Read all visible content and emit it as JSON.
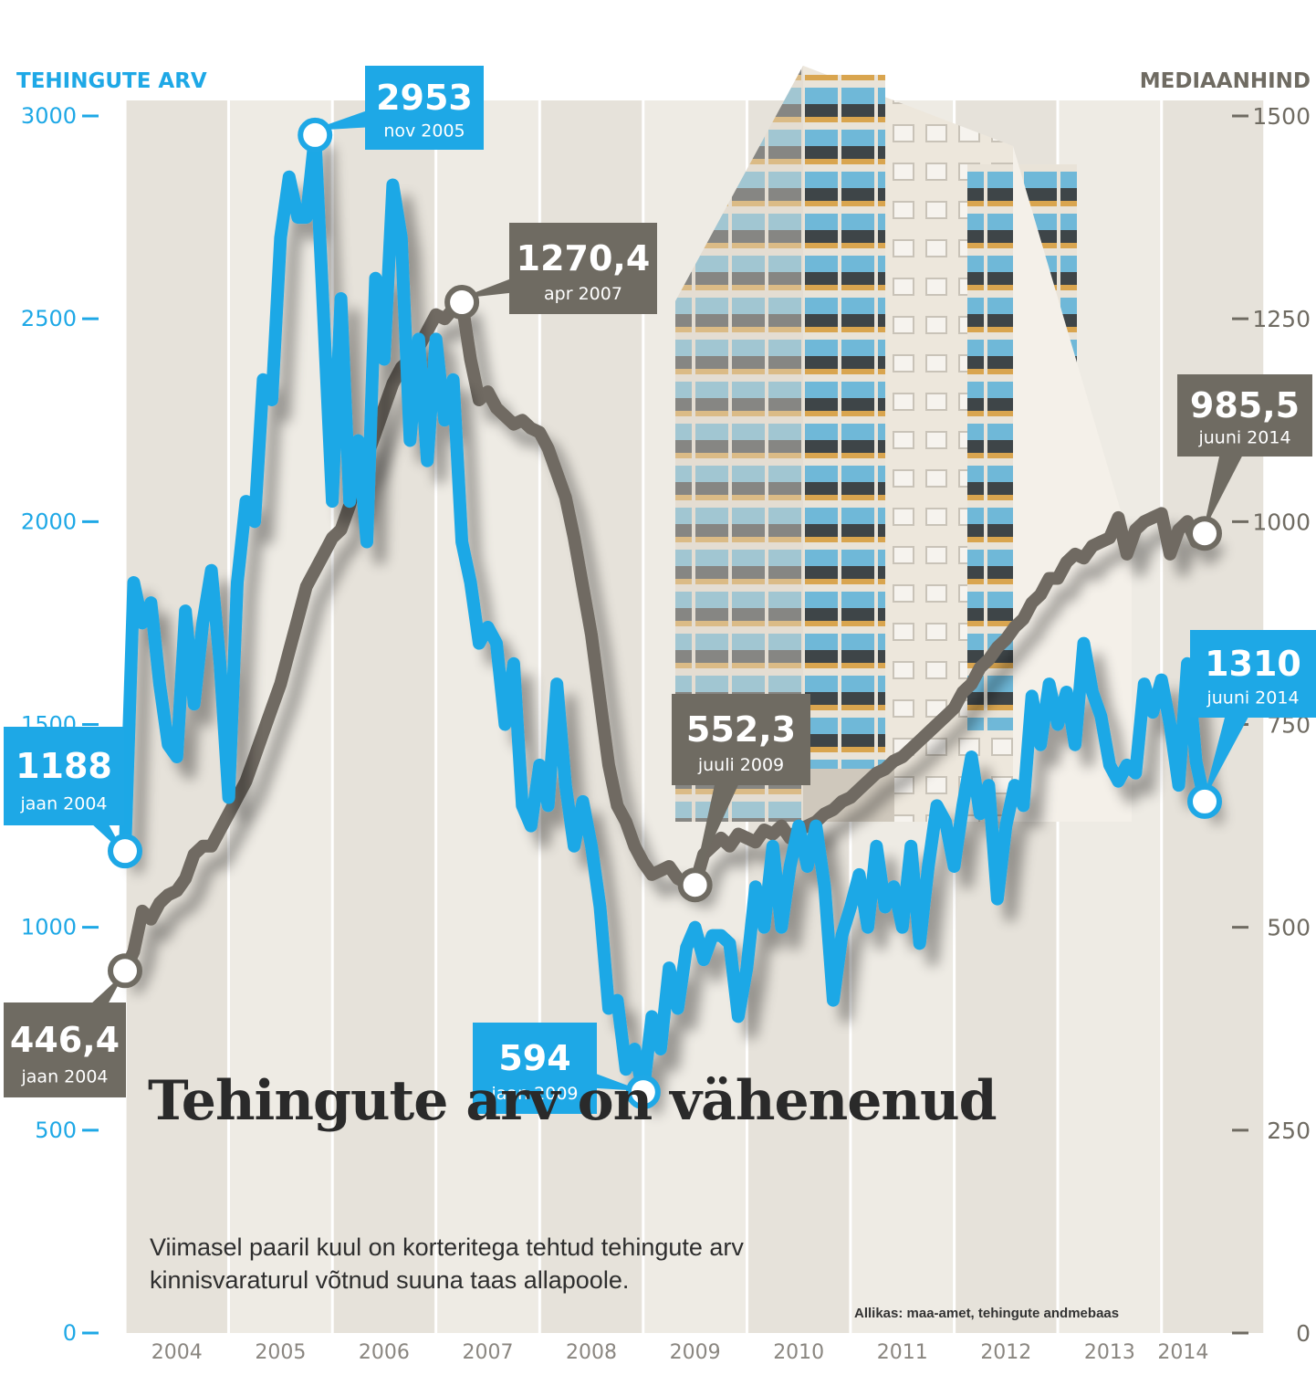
{
  "chart_data": {
    "type": "line",
    "title": "Tehingute arv on vähenenud",
    "subtitle": "Viimasel paaril kuul on korteritega tehtud tehingute arv kinnisvaraturul võtnud suuna taas allapoole.",
    "source": "Allikas: maa-amet, tehingute andmebaas",
    "left_axis": {
      "label": "TEHINGUTE ARV",
      "ticks": [
        "3000",
        "2500",
        "2000",
        "1500",
        "1000",
        "500",
        "0"
      ],
      "ylim": [
        0,
        3000
      ]
    },
    "right_axis": {
      "label": "MEDIAANHIND",
      "ticks": [
        "1500",
        "1250",
        "1000",
        "750",
        "500",
        "250",
        "0"
      ],
      "ylim": [
        0,
        1500
      ]
    },
    "x_labels": [
      "2004",
      "2005",
      "2006",
      "2007",
      "2008",
      "2009",
      "2010",
      "2011",
      "2012",
      "2013",
      "2014"
    ],
    "x_range": [
      "2004-01",
      "2014-06"
    ],
    "colors": {
      "tehingud": "#1ea8e6",
      "mediaanhind": "#6f6b62"
    },
    "series": [
      {
        "name": "TEHINGUTE ARV",
        "axis": "left",
        "color": "#1ea8e6",
        "points": [
          [
            "2004-01",
            1188
          ],
          [
            "2004-02",
            1850
          ],
          [
            "2004-03",
            1750
          ],
          [
            "2004-04",
            1800
          ],
          [
            "2004-05",
            1600
          ],
          [
            "2004-06",
            1450
          ],
          [
            "2004-07",
            1420
          ],
          [
            "2004-08",
            1780
          ],
          [
            "2004-09",
            1550
          ],
          [
            "2004-10",
            1750
          ],
          [
            "2004-11",
            1880
          ],
          [
            "2004-12",
            1650
          ],
          [
            "2005-01",
            1320
          ],
          [
            "2005-02",
            1850
          ],
          [
            "2005-03",
            2050
          ],
          [
            "2005-04",
            2000
          ],
          [
            "2005-05",
            2350
          ],
          [
            "2005-06",
            2300
          ],
          [
            "2005-07",
            2700
          ],
          [
            "2005-08",
            2850
          ],
          [
            "2005-09",
            2750
          ],
          [
            "2005-10",
            2750
          ],
          [
            "2005-11",
            2953
          ],
          [
            "2005-12",
            2500
          ],
          [
            "2006-01",
            2050
          ],
          [
            "2006-02",
            2550
          ],
          [
            "2006-03",
            2050
          ],
          [
            "2006-04",
            2200
          ],
          [
            "2006-05",
            1950
          ],
          [
            "2006-06",
            2600
          ],
          [
            "2006-07",
            2400
          ],
          [
            "2006-08",
            2830
          ],
          [
            "2006-09",
            2700
          ],
          [
            "2006-10",
            2200
          ],
          [
            "2006-11",
            2450
          ],
          [
            "2006-12",
            2150
          ],
          [
            "2007-01",
            2450
          ],
          [
            "2007-02",
            2250
          ],
          [
            "2007-03",
            2350
          ],
          [
            "2007-04",
            1950
          ],
          [
            "2007-05",
            1850
          ],
          [
            "2007-06",
            1700
          ],
          [
            "2007-07",
            1740
          ],
          [
            "2007-08",
            1700
          ],
          [
            "2007-09",
            1500
          ],
          [
            "2007-10",
            1650
          ],
          [
            "2007-11",
            1300
          ],
          [
            "2007-12",
            1250
          ],
          [
            "2008-01",
            1400
          ],
          [
            "2008-02",
            1300
          ],
          [
            "2008-03",
            1600
          ],
          [
            "2008-04",
            1350
          ],
          [
            "2008-05",
            1200
          ],
          [
            "2008-06",
            1310
          ],
          [
            "2008-07",
            1200
          ],
          [
            "2008-08",
            1050
          ],
          [
            "2008-09",
            800
          ],
          [
            "2008-10",
            820
          ],
          [
            "2008-11",
            650
          ],
          [
            "2008-12",
            700
          ],
          [
            "2009-01",
            594
          ],
          [
            "2009-02",
            780
          ],
          [
            "2009-03",
            700
          ],
          [
            "2009-04",
            900
          ],
          [
            "2009-05",
            800
          ],
          [
            "2009-06",
            950
          ],
          [
            "2009-07",
            1000
          ],
          [
            "2009-08",
            920
          ],
          [
            "2009-09",
            980
          ],
          [
            "2009-10",
            980
          ],
          [
            "2009-11",
            960
          ],
          [
            "2009-12",
            780
          ],
          [
            "2010-01",
            900
          ],
          [
            "2010-02",
            1100
          ],
          [
            "2010-03",
            1000
          ],
          [
            "2010-04",
            1200
          ],
          [
            "2010-05",
            1000
          ],
          [
            "2010-06",
            1150
          ],
          [
            "2010-07",
            1250
          ],
          [
            "2010-08",
            1150
          ],
          [
            "2010-09",
            1250
          ],
          [
            "2010-10",
            1100
          ],
          [
            "2010-11",
            820
          ],
          [
            "2010-12",
            980
          ],
          [
            "2011-01",
            1050
          ],
          [
            "2011-02",
            1130
          ],
          [
            "2011-03",
            1000
          ],
          [
            "2011-04",
            1200
          ],
          [
            "2011-05",
            1050
          ],
          [
            "2011-06",
            1100
          ],
          [
            "2011-07",
            1000
          ],
          [
            "2011-08",
            1200
          ],
          [
            "2011-09",
            960
          ],
          [
            "2011-10",
            1150
          ],
          [
            "2011-11",
            1300
          ],
          [
            "2011-12",
            1260
          ],
          [
            "2012-01",
            1150
          ],
          [
            "2012-02",
            1300
          ],
          [
            "2012-03",
            1420
          ],
          [
            "2012-04",
            1280
          ],
          [
            "2012-05",
            1350
          ],
          [
            "2012-06",
            1070
          ],
          [
            "2012-07",
            1250
          ],
          [
            "2012-08",
            1350
          ],
          [
            "2012-09",
            1300
          ],
          [
            "2012-10",
            1570
          ],
          [
            "2012-11",
            1450
          ],
          [
            "2012-12",
            1600
          ],
          [
            "2013-01",
            1500
          ],
          [
            "2013-02",
            1580
          ],
          [
            "2013-03",
            1450
          ],
          [
            "2013-04",
            1700
          ],
          [
            "2013-05",
            1580
          ],
          [
            "2013-06",
            1520
          ],
          [
            "2013-07",
            1400
          ],
          [
            "2013-08",
            1360
          ],
          [
            "2013-09",
            1400
          ],
          [
            "2013-10",
            1380
          ],
          [
            "2013-11",
            1600
          ],
          [
            "2013-12",
            1530
          ],
          [
            "2014-01",
            1610
          ],
          [
            "2014-02",
            1500
          ],
          [
            "2014-03",
            1350
          ],
          [
            "2014-04",
            1650
          ],
          [
            "2014-05",
            1410
          ],
          [
            "2014-06",
            1310
          ]
        ]
      },
      {
        "name": "MEDIAANHIND",
        "axis": "right",
        "color": "#6f6b62",
        "points": [
          [
            "2004-01",
            446.4
          ],
          [
            "2004-02",
            470
          ],
          [
            "2004-03",
            520
          ],
          [
            "2004-04",
            510
          ],
          [
            "2004-05",
            530
          ],
          [
            "2004-06",
            540
          ],
          [
            "2004-07",
            545
          ],
          [
            "2004-08",
            560
          ],
          [
            "2004-09",
            590
          ],
          [
            "2004-10",
            600
          ],
          [
            "2004-11",
            600
          ],
          [
            "2004-12",
            620
          ],
          [
            "2005-01",
            640
          ],
          [
            "2005-02",
            660
          ],
          [
            "2005-03",
            680
          ],
          [
            "2005-04",
            710
          ],
          [
            "2005-05",
            740
          ],
          [
            "2005-06",
            770
          ],
          [
            "2005-07",
            800
          ],
          [
            "2005-08",
            840
          ],
          [
            "2005-09",
            880
          ],
          [
            "2005-10",
            920
          ],
          [
            "2005-11",
            940
          ],
          [
            "2005-12",
            960
          ],
          [
            "2006-01",
            980
          ],
          [
            "2006-02",
            990
          ],
          [
            "2006-03",
            1020
          ],
          [
            "2006-04",
            1060
          ],
          [
            "2006-05",
            1080
          ],
          [
            "2006-06",
            1110
          ],
          [
            "2006-07",
            1140
          ],
          [
            "2006-08",
            1170
          ],
          [
            "2006-09",
            1190
          ],
          [
            "2006-10",
            1200
          ],
          [
            "2006-11",
            1215
          ],
          [
            "2006-12",
            1235
          ],
          [
            "2007-01",
            1255
          ],
          [
            "2007-02",
            1250
          ],
          [
            "2007-03",
            1262
          ],
          [
            "2007-04",
            1270.4
          ],
          [
            "2007-05",
            1200
          ],
          [
            "2007-06",
            1150
          ],
          [
            "2007-07",
            1160
          ],
          [
            "2007-08",
            1140
          ],
          [
            "2007-09",
            1130
          ],
          [
            "2007-10",
            1120
          ],
          [
            "2007-11",
            1125
          ],
          [
            "2007-12",
            1115
          ],
          [
            "2008-01",
            1110
          ],
          [
            "2008-02",
            1090
          ],
          [
            "2008-03",
            1060
          ],
          [
            "2008-04",
            1030
          ],
          [
            "2008-05",
            980
          ],
          [
            "2008-06",
            920
          ],
          [
            "2008-07",
            860
          ],
          [
            "2008-08",
            780
          ],
          [
            "2008-09",
            700
          ],
          [
            "2008-10",
            650
          ],
          [
            "2008-11",
            630
          ],
          [
            "2008-12",
            600
          ],
          [
            "2009-01",
            580
          ],
          [
            "2009-02",
            565
          ],
          [
            "2009-03",
            570
          ],
          [
            "2009-04",
            575
          ],
          [
            "2009-05",
            560
          ],
          [
            "2009-06",
            555
          ],
          [
            "2009-07",
            552.3
          ],
          [
            "2009-08",
            590
          ],
          [
            "2009-09",
            600
          ],
          [
            "2009-10",
            610
          ],
          [
            "2009-11",
            600
          ],
          [
            "2009-12",
            615
          ],
          [
            "2010-01",
            610
          ],
          [
            "2010-02",
            605
          ],
          [
            "2010-03",
            620
          ],
          [
            "2010-04",
            615
          ],
          [
            "2010-05",
            625
          ],
          [
            "2010-06",
            610
          ],
          [
            "2010-07",
            620
          ],
          [
            "2010-08",
            625
          ],
          [
            "2010-09",
            630
          ],
          [
            "2010-10",
            640
          ],
          [
            "2010-11",
            645
          ],
          [
            "2010-12",
            655
          ],
          [
            "2011-01",
            660
          ],
          [
            "2011-02",
            670
          ],
          [
            "2011-03",
            680
          ],
          [
            "2011-04",
            690
          ],
          [
            "2011-05",
            695
          ],
          [
            "2011-06",
            705
          ],
          [
            "2011-07",
            710
          ],
          [
            "2011-08",
            720
          ],
          [
            "2011-09",
            730
          ],
          [
            "2011-10",
            740
          ],
          [
            "2011-11",
            750
          ],
          [
            "2011-12",
            760
          ],
          [
            "2012-01",
            770
          ],
          [
            "2012-02",
            790
          ],
          [
            "2012-03",
            800
          ],
          [
            "2012-04",
            820
          ],
          [
            "2012-05",
            830
          ],
          [
            "2012-06",
            845
          ],
          [
            "2012-07",
            855
          ],
          [
            "2012-08",
            870
          ],
          [
            "2012-09",
            880
          ],
          [
            "2012-10",
            900
          ],
          [
            "2012-11",
            910
          ],
          [
            "2012-12",
            930
          ],
          [
            "2013-01",
            930
          ],
          [
            "2013-02",
            950
          ],
          [
            "2013-03",
            960
          ],
          [
            "2013-04",
            955
          ],
          [
            "2013-05",
            970
          ],
          [
            "2013-06",
            975
          ],
          [
            "2013-07",
            980
          ],
          [
            "2013-08",
            1005
          ],
          [
            "2013-09",
            960
          ],
          [
            "2013-10",
            990
          ],
          [
            "2013-11",
            1000
          ],
          [
            "2013-12",
            1005
          ],
          [
            "2014-01",
            1010
          ],
          [
            "2014-02",
            960
          ],
          [
            "2014-03",
            990
          ],
          [
            "2014-04",
            1000
          ],
          [
            "2014-05",
            975
          ],
          [
            "2014-06",
            985.5
          ]
        ]
      }
    ],
    "callouts": [
      {
        "value": "1188",
        "label": "jaan 2004",
        "series": 0,
        "date": "2004-01"
      },
      {
        "value": "2953",
        "label": "nov 2005",
        "series": 0,
        "date": "2005-11"
      },
      {
        "value": "594",
        "label": "jaan 2009",
        "series": 0,
        "date": "2009-01"
      },
      {
        "value": "1310",
        "label": "juuni 2014",
        "series": 0,
        "date": "2014-06"
      },
      {
        "value": "446,4",
        "label": "jaan 2004",
        "series": 1,
        "date": "2004-01"
      },
      {
        "value": "1270,4",
        "label": "apr 2007",
        "series": 1,
        "date": "2007-04"
      },
      {
        "value": "552,3",
        "label": "juuli 2009",
        "series": 1,
        "date": "2009-07"
      },
      {
        "value": "985,5",
        "label": "juuni 2014",
        "series": 1,
        "date": "2014-06"
      }
    ]
  }
}
